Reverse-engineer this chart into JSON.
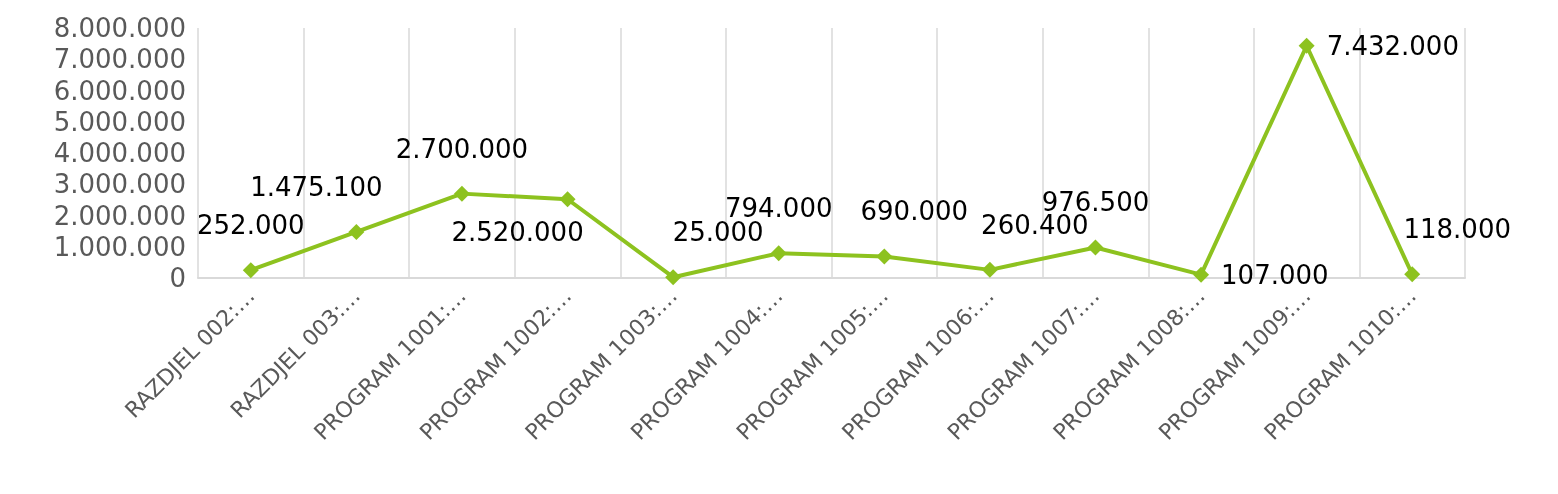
{
  "chart_data": {
    "type": "line",
    "categories": [
      "RAZDJEL 002:…",
      "RAZDJEL 003:…",
      "PROGRAM 1001:…",
      "PROGRAM 1002:…",
      "PROGRAM 1003:…",
      "PROGRAM 1004:…",
      "PROGRAM 1005:…",
      "PROGRAM 1006:…",
      "PROGRAM 1007:…",
      "PROGRAM 1008:…",
      "PROGRAM 1009:…",
      "PROGRAM 1010:…"
    ],
    "series": [
      {
        "color": "#8dc21f",
        "values": [
          252000,
          1475100,
          2700000,
          2520000,
          25000,
          794000,
          690000,
          260400,
          976500,
          107000,
          7432000,
          118000
        ],
        "value_labels": [
          "252.000",
          "1.475.100",
          "2.700.000",
          "2.520.000",
          "25.000",
          "794.000",
          "690.000",
          "260.400",
          "976.500",
          "107.000",
          "7.432.000",
          "118.000"
        ]
      }
    ],
    "ylim": [
      0,
      8000000
    ],
    "yticks": [
      0,
      {
        "value": 1000000,
        "label": "1.000.000"
      },
      {
        "value": 2000000,
        "label": "2.000.000"
      },
      {
        "value": 3000000,
        "label": "3.000.000"
      },
      {
        "value": 4000000,
        "label": "4.000.000"
      },
      {
        "value": 5000000,
        "label": "5.000.000"
      },
      {
        "value": 6000000,
        "label": "6.000.000"
      },
      {
        "value": 7000000,
        "label": "7.000.000"
      },
      {
        "value": 8000000,
        "label": "8.000.000"
      }
    ],
    "grid": "x",
    "marker": "diamond",
    "line_style": "solid"
  }
}
